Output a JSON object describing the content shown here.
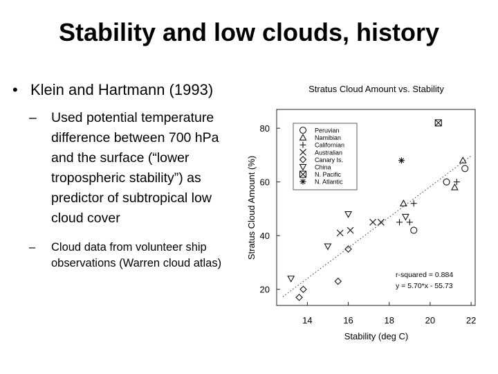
{
  "slide": {
    "title": "Stability and low clouds, history",
    "bullet1": "Klein and Hartmann (1993)",
    "sub1": "Used potential temperature difference between 700 hPa and the surface (“lower tropospheric stability”) as predictor of subtropical low cloud cover",
    "sub2": "Cloud data from volunteer ship observations (Warren cloud atlas)"
  },
  "chart_data": {
    "type": "scatter",
    "title": "Stratus Cloud Amount vs. Stability",
    "xlabel": "Stability (deg C)",
    "ylabel": "Stratus Cloud Amount (%)",
    "xlim": [
      12.5,
      22.2
    ],
    "ylim": [
      14,
      87
    ],
    "xticks": [
      14,
      16,
      18,
      20,
      22
    ],
    "yticks": [
      20,
      40,
      60,
      80
    ],
    "legend_position": "top-left",
    "series": [
      {
        "name": "Peruvian",
        "marker": "circle",
        "points": [
          [
            19.2,
            42
          ],
          [
            20.8,
            60
          ],
          [
            21.7,
            65
          ]
        ]
      },
      {
        "name": "Namibian",
        "marker": "triangle-up",
        "points": [
          [
            18.7,
            52
          ],
          [
            21.2,
            58
          ],
          [
            21.6,
            68
          ]
        ]
      },
      {
        "name": "Californian",
        "marker": "plus",
        "points": [
          [
            18.5,
            45
          ],
          [
            19.0,
            45
          ],
          [
            19.2,
            52
          ],
          [
            21.3,
            60
          ]
        ]
      },
      {
        "name": "Australian",
        "marker": "x",
        "points": [
          [
            15.6,
            41
          ],
          [
            16.1,
            42
          ],
          [
            17.2,
            45
          ],
          [
            17.6,
            45
          ]
        ]
      },
      {
        "name": "Canary Is.",
        "marker": "diamond",
        "points": [
          [
            13.6,
            17
          ],
          [
            13.8,
            20
          ],
          [
            15.5,
            23
          ],
          [
            16.0,
            35
          ]
        ]
      },
      {
        "name": "China",
        "marker": "triangle-down",
        "points": [
          [
            13.2,
            24
          ],
          [
            15.0,
            36
          ],
          [
            16.0,
            48
          ],
          [
            18.8,
            47
          ]
        ]
      },
      {
        "name": "N. Pacific",
        "marker": "boxed-x",
        "points": [
          [
            20.4,
            82
          ]
        ]
      },
      {
        "name": "N. Atlantic",
        "marker": "asterisk",
        "points": [
          [
            18.6,
            68
          ]
        ]
      }
    ],
    "fit_line": {
      "slope": 5.7,
      "intercept": -55.73,
      "x_range": [
        12.8,
        22.0
      ],
      "style": "dotted"
    },
    "annotations": [
      "r-squared = 0.884",
      "y = 5.70*x - 55.73"
    ]
  }
}
